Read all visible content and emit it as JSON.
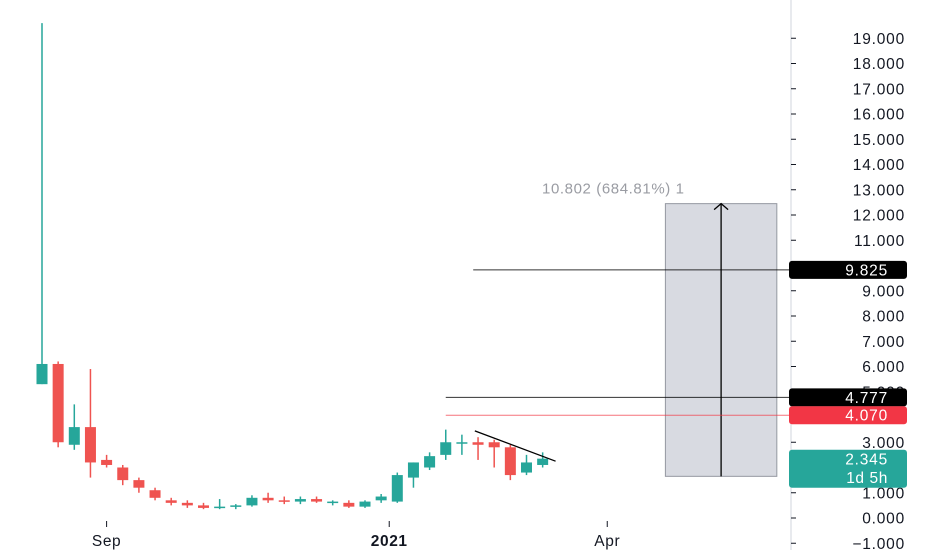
{
  "chart_data": {
    "type": "candlestick",
    "y_axis": {
      "min": -1.4,
      "max": 19.6,
      "tick_values": [
        -1,
        0,
        1,
        2,
        3,
        4,
        5,
        6,
        7,
        8,
        9,
        10,
        11,
        12,
        13,
        14,
        15,
        16,
        17,
        18,
        19
      ],
      "tick_labels": [
        "−1.000",
        "0.000",
        "1.000",
        "2.000",
        "3.000",
        "",
        "5.000",
        "6.000",
        "7.000",
        "8.000",
        "9.000",
        "",
        "11.000",
        "12.000",
        "13.000",
        "14.000",
        "15.000",
        "16.000",
        "17.000",
        "18.000",
        "19.000"
      ]
    },
    "x_axis": {
      "labels": [
        {
          "text": "Sep",
          "period": 4
        },
        {
          "text": "2021",
          "period": 21.5
        },
        {
          "text": "Apr",
          "period": 35
        }
      ]
    },
    "colors": {
      "up": "#26a69a",
      "down": "#ef5350",
      "grid": "#ffffff"
    },
    "candles": [
      {
        "o": 5.3,
        "h": 19.6,
        "l": 5.3,
        "c": 6.1
      },
      {
        "o": 6.1,
        "h": 6.2,
        "l": 2.8,
        "c": 3.0
      },
      {
        "o": 2.9,
        "h": 4.5,
        "l": 2.7,
        "c": 3.6
      },
      {
        "o": 3.6,
        "h": 5.9,
        "l": 1.6,
        "c": 2.2
      },
      {
        "o": 2.3,
        "h": 2.5,
        "l": 2.0,
        "c": 2.1
      },
      {
        "o": 2.0,
        "h": 2.1,
        "l": 1.3,
        "c": 1.5
      },
      {
        "o": 1.5,
        "h": 1.6,
        "l": 1.0,
        "c": 1.2
      },
      {
        "o": 1.1,
        "h": 1.2,
        "l": 0.7,
        "c": 0.8
      },
      {
        "o": 0.7,
        "h": 0.8,
        "l": 0.5,
        "c": 0.6
      },
      {
        "o": 0.6,
        "h": 0.7,
        "l": 0.4,
        "c": 0.5
      },
      {
        "o": 0.5,
        "h": 0.6,
        "l": 0.35,
        "c": 0.4
      },
      {
        "o": 0.4,
        "h": 0.75,
        "l": 0.35,
        "c": 0.45
      },
      {
        "o": 0.45,
        "h": 0.55,
        "l": 0.35,
        "c": 0.5
      },
      {
        "o": 0.5,
        "h": 0.9,
        "l": 0.45,
        "c": 0.8
      },
      {
        "o": 0.8,
        "h": 1.0,
        "l": 0.6,
        "c": 0.7
      },
      {
        "o": 0.7,
        "h": 0.85,
        "l": 0.55,
        "c": 0.65
      },
      {
        "o": 0.65,
        "h": 0.85,
        "l": 0.55,
        "c": 0.75
      },
      {
        "o": 0.75,
        "h": 0.85,
        "l": 0.6,
        "c": 0.65
      },
      {
        "o": 0.6,
        "h": 0.7,
        "l": 0.5,
        "c": 0.65
      },
      {
        "o": 0.6,
        "h": 0.7,
        "l": 0.4,
        "c": 0.45
      },
      {
        "o": 0.45,
        "h": 0.7,
        "l": 0.4,
        "c": 0.65
      },
      {
        "o": 0.7,
        "h": 0.95,
        "l": 0.6,
        "c": 0.85
      },
      {
        "o": 0.65,
        "h": 1.8,
        "l": 0.6,
        "c": 1.7
      },
      {
        "o": 1.6,
        "h": 2.2,
        "l": 1.2,
        "c": 2.2
      },
      {
        "o": 2.0,
        "h": 2.6,
        "l": 1.9,
        "c": 2.45
      },
      {
        "o": 2.5,
        "h": 3.5,
        "l": 2.3,
        "c": 3.0
      },
      {
        "o": 3.0,
        "h": 3.3,
        "l": 2.5,
        "c": 3.0
      },
      {
        "o": 3.0,
        "h": 3.2,
        "l": 2.3,
        "c": 2.9
      },
      {
        "o": 3.0,
        "h": 3.1,
        "l": 2.0,
        "c": 2.8
      },
      {
        "o": 2.8,
        "h": 2.9,
        "l": 1.5,
        "c": 1.7
      },
      {
        "o": 1.8,
        "h": 2.5,
        "l": 1.7,
        "c": 2.2
      },
      {
        "o": 2.1,
        "h": 2.6,
        "l": 2.0,
        "c": 2.35
      }
    ],
    "price_labels": [
      {
        "text": "9.825",
        "value": 9.825,
        "color": "#000000"
      },
      {
        "text": "4.777",
        "value": 4.777,
        "color": "#000000"
      },
      {
        "text": "4.070",
        "value": 4.07,
        "color": "#f23645"
      },
      {
        "text": "2.345",
        "value": 2.345,
        "color": "#26a69a"
      }
    ],
    "price_label_sub": "1d 5h",
    "horizontal_lines": [
      {
        "value": 9.825,
        "from_period": 26.7,
        "color": "#000000"
      },
      {
        "value": 4.777,
        "from_period": 25.0,
        "color": "#000000"
      },
      {
        "value": 4.07,
        "from_period": 25.0,
        "color": "#f23645"
      }
    ],
    "trendline": {
      "p1": [
        26.8,
        3.45
      ],
      "p2": [
        31.8,
        2.25
      ],
      "color": "#000000"
    },
    "measure": {
      "from_period": 38.6,
      "to_period": 45.5,
      "bottom": 1.65,
      "top": 12.45,
      "label": "10.802 (684.81%) 1"
    }
  }
}
